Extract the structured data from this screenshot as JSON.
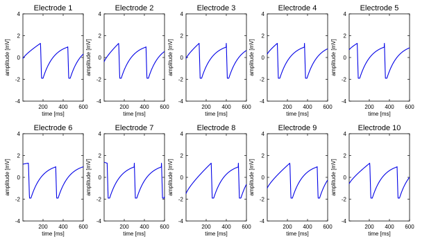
{
  "chart_data": {
    "type": "line",
    "ylabel": "amplitude [mV]",
    "xlabel": "time [ms]",
    "xticks": [
      "200",
      "400",
      "600"
    ],
    "yticks": [
      "-4",
      "-2",
      "0",
      "2",
      "4"
    ],
    "xlim": [
      0,
      600
    ],
    "ylim": [
      -4,
      4
    ],
    "grid": false,
    "line_color": "#0000e6",
    "panels": [
      {
        "title": "Electrode 1",
        "upstroke_times": [
          175,
          445
        ],
        "start_value": -0.1
      },
      {
        "title": "Electrode 2",
        "upstroke_times": [
          145,
          415
        ],
        "start_value": -0.4
      },
      {
        "title": "Electrode 3",
        "upstroke_times": [
          130,
          400
        ],
        "start_value": -0.1
      },
      {
        "title": "Electrode 4",
        "upstroke_times": [
          100,
          370
        ],
        "start_value": 0.3
      },
      {
        "title": "Electrode 5",
        "upstroke_times": [
          80,
          350
        ],
        "start_value": 0.7
      },
      {
        "title": "Electrode 6",
        "upstroke_times": [
          55,
          325
        ],
        "start_value": 1.2
      },
      {
        "title": "Electrode 7",
        "upstroke_times": [
          30,
          300,
          570
        ],
        "start_value": 1.4
      },
      {
        "title": "Electrode 8",
        "upstroke_times": [
          250,
          520
        ],
        "start_value": -1.5
      },
      {
        "title": "Electrode 9",
        "upstroke_times": [
          225,
          495
        ],
        "start_value": -1.0
      },
      {
        "title": "Electrode 10",
        "upstroke_times": [
          205,
          475
        ],
        "start_value": -0.6
      }
    ]
  }
}
